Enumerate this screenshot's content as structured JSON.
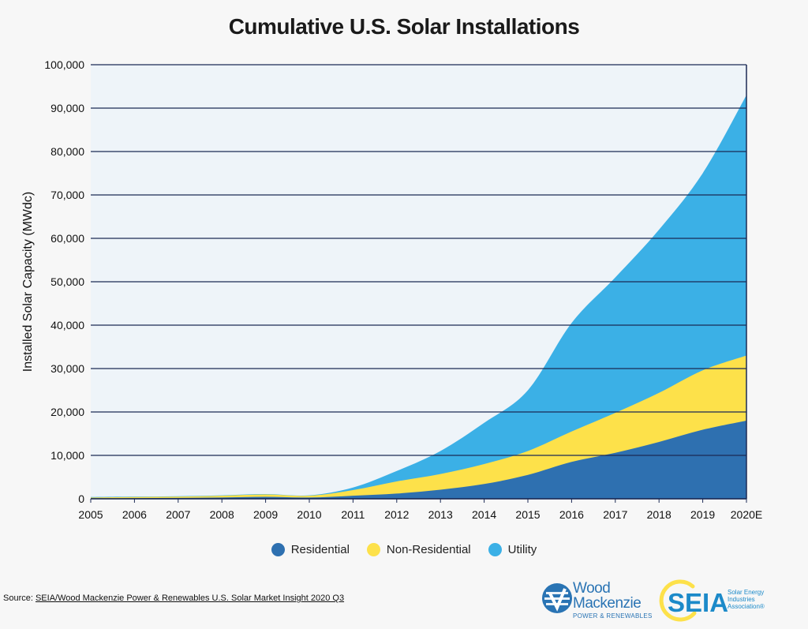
{
  "chart_data": {
    "type": "area",
    "stacked": true,
    "title": "Cumulative U.S. Solar Installations",
    "xlabel": "",
    "ylabel": "Installed Solar Capacity (MWdc)",
    "ylim": [
      0,
      100000
    ],
    "y_ticks": [
      "0",
      "10,000",
      "20,000",
      "30,000",
      "40,000",
      "50,000",
      "60,000",
      "70,000",
      "80,000",
      "90,000",
      "100,000"
    ],
    "categories": [
      "2005",
      "2006",
      "2007",
      "2008",
      "2009",
      "2010",
      "2011",
      "2012",
      "2013",
      "2014",
      "2015",
      "2016",
      "2017",
      "2018",
      "2019",
      "2020E"
    ],
    "series": [
      {
        "name": "Residential",
        "color": "#2e70b0",
        "values": [
          100,
          150,
          200,
          300,
          450,
          300,
          700,
          1200,
          2100,
          3400,
          5500,
          8500,
          10600,
          13100,
          15900,
          18000
        ]
      },
      {
        "name": "Non-Residential",
        "color": "#fde14a",
        "values": [
          200,
          250,
          300,
          400,
          550,
          400,
          1300,
          2800,
          3600,
          4600,
          5500,
          7000,
          9200,
          11300,
          13700,
          15000
        ]
      },
      {
        "name": "Utility",
        "color": "#3bb0e6",
        "values": [
          100,
          100,
          100,
          100,
          100,
          100,
          600,
          2400,
          5300,
          9500,
          14000,
          25000,
          31200,
          37600,
          45400,
          60000
        ]
      }
    ],
    "grid": true,
    "legend_position": "bottom-center"
  },
  "legend": {
    "items": [
      {
        "label": "Residential",
        "color": "#2e70b0"
      },
      {
        "label": "Non-Residential",
        "color": "#fde14a"
      },
      {
        "label": "Utility",
        "color": "#3bb0e6"
      }
    ]
  },
  "source": {
    "prefix": "Source: ",
    "link_text": "SEIA/Wood Mackenzie Power & Renewables U.S. Solar Market Insight 2020 Q3"
  },
  "logos": {
    "wood_mackenzie": {
      "name": "Wood\nMackenzie",
      "line1": "Wood",
      "line2": "Mackenzie",
      "sub": "POWER & RENEWABLES"
    },
    "seia": {
      "word": "SEIA",
      "sub": "Solar Energy Industries Association®"
    }
  }
}
